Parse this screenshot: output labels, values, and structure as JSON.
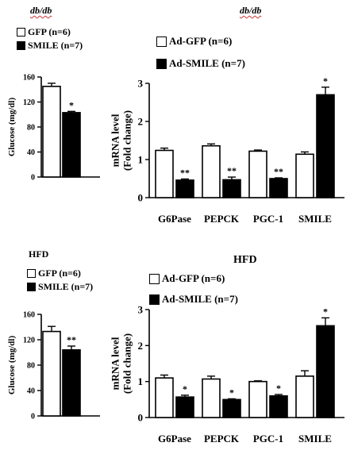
{
  "colors": {
    "open": "#ffffff",
    "filled": "#000000",
    "stroke": "#000000"
  },
  "chart_data": [
    {
      "type": "bar",
      "panel": "top-left",
      "title": "db/db",
      "ylabel": "Glucose (mg/dl)",
      "ylim": [
        0,
        160
      ],
      "yticks": [
        0,
        40,
        80,
        120,
        160
      ],
      "categories": [
        ""
      ],
      "series": [
        {
          "name": "GFP (n=6)",
          "values": [
            145
          ],
          "errors": [
            5
          ],
          "sig": [
            ""
          ]
        },
        {
          "name": "SMILE (n=7)",
          "values": [
            103
          ],
          "errors": [
            2
          ],
          "sig": [
            "*"
          ]
        }
      ]
    },
    {
      "type": "bar",
      "panel": "top-right",
      "title": "db/db",
      "ylabel": "mRNA level (Fold change)",
      "ylim": [
        0,
        3
      ],
      "yticks": [
        0,
        1,
        2,
        3
      ],
      "categories": [
        "G6Pase",
        "PEPCK",
        "PGC-1",
        "SMILE"
      ],
      "series": [
        {
          "name": "Ad-GFP (n=6)",
          "values": [
            1.24,
            1.36,
            1.22,
            1.14
          ],
          "errors": [
            0.06,
            0.05,
            0.03,
            0.06
          ],
          "sig": [
            "",
            "",
            "",
            ""
          ]
        },
        {
          "name": "Ad-SMILE (n=7)",
          "values": [
            0.46,
            0.47,
            0.5,
            2.7
          ],
          "errors": [
            0.03,
            0.07,
            0.02,
            0.2
          ],
          "sig": [
            "**",
            "**",
            "**",
            "*"
          ]
        }
      ]
    },
    {
      "type": "bar",
      "panel": "bottom-left",
      "title": "HFD",
      "ylabel": "Glucose (mg/dl)",
      "ylim": [
        0,
        160
      ],
      "yticks": [
        0,
        40,
        80,
        120,
        160
      ],
      "categories": [
        ""
      ],
      "series": [
        {
          "name": "GFP (n=6)",
          "values": [
            133
          ],
          "errors": [
            8
          ],
          "sig": [
            ""
          ]
        },
        {
          "name": "SMILE (n=7)",
          "values": [
            104
          ],
          "errors": [
            6
          ],
          "sig": [
            "**"
          ]
        }
      ]
    },
    {
      "type": "bar",
      "panel": "bottom-right",
      "title": "HFD",
      "ylabel": "mRNA level (Fold change)",
      "ylim": [
        0,
        3
      ],
      "yticks": [
        0,
        1,
        2,
        3
      ],
      "categories": [
        "G6Pase",
        "PEPCK",
        "PGC-1",
        "SMILE"
      ],
      "series": [
        {
          "name": "Ad-GFP (n=6)",
          "values": [
            1.1,
            1.07,
            1.0,
            1.15
          ],
          "errors": [
            0.08,
            0.08,
            0.02,
            0.15
          ],
          "sig": [
            "",
            "",
            "",
            ""
          ]
        },
        {
          "name": "Ad-SMILE (n=7)",
          "values": [
            0.57,
            0.5,
            0.6,
            2.55
          ],
          "errors": [
            0.05,
            0.02,
            0.04,
            0.22
          ],
          "sig": [
            "*",
            "*",
            "*",
            "*"
          ]
        }
      ]
    }
  ]
}
